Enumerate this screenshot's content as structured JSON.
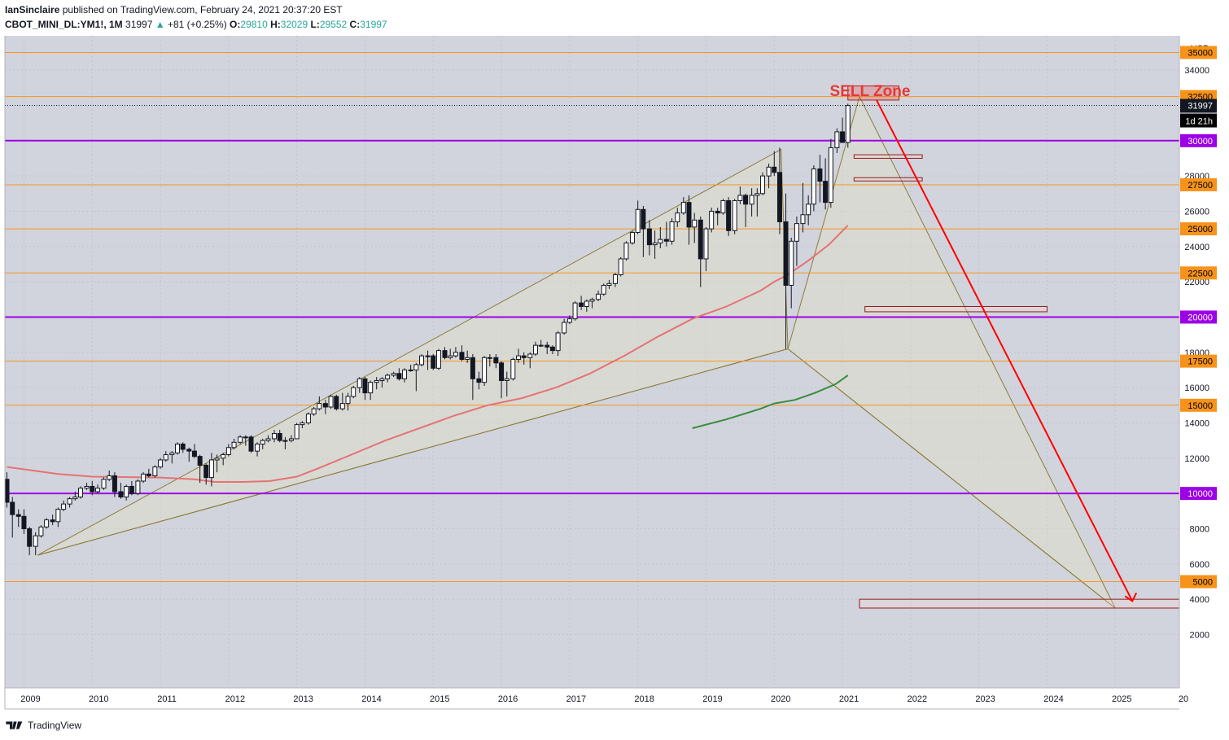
{
  "header": {
    "author": "IanSinclaire",
    "published_text": "published on TradingView.com, February 24, 2021 20:37:20 EST",
    "symbol": "CBOT_MINI_DL:YM1!, 1M",
    "last": "31997",
    "change": "+81 (+0.25%)",
    "o_label": "O:",
    "o_value": "29810",
    "h_label": "H:",
    "h_value": "32029",
    "l_label": "L:",
    "l_value": "29552",
    "c_label": "C:",
    "c_value": "31997"
  },
  "footer": {
    "brand": "TradingView"
  },
  "colors": {
    "background": "#d1d4dc",
    "orange_line": "#f7931a",
    "purple_line": "#9c00e6",
    "sell_zone": "#e53935",
    "forecast_arrow": "#ff0000",
    "ema_red": "#e57373",
    "ema_green": "#388e3c",
    "pattern_line": "#8b7d3a"
  },
  "chart_data": {
    "type": "candlestick",
    "currency_label": "USD",
    "y_range": [
      0,
      36600
    ],
    "x_range": [
      "2008-10",
      "2025-12"
    ],
    "price_axis_ticks": [
      2000,
      4000,
      6000,
      8000,
      12000,
      14000,
      16000,
      18000,
      22000,
      24000,
      26000,
      28000,
      34000
    ],
    "x_tick_labels": [
      "2009",
      "2010",
      "2011",
      "2012",
      "2013",
      "2014",
      "2015",
      "2016",
      "2017",
      "2018",
      "2019",
      "2020",
      "2021",
      "2022",
      "2023",
      "2024",
      "2025",
      "20"
    ],
    "horizontal_levels": [
      {
        "value": 35000,
        "color": "orange",
        "label": "35000"
      },
      {
        "value": 32500,
        "color": "orange",
        "label": "32500"
      },
      {
        "value": 30000,
        "color": "purple",
        "label": "30000"
      },
      {
        "value": 27500,
        "color": "orange",
        "label": "27500"
      },
      {
        "value": 25000,
        "color": "orange",
        "label": "25000"
      },
      {
        "value": 22500,
        "color": "orange",
        "label": "22500"
      },
      {
        "value": 20000,
        "color": "purple",
        "label": "20000"
      },
      {
        "value": 17500,
        "color": "orange",
        "label": "17500"
      },
      {
        "value": 15000,
        "color": "orange",
        "label": "15000"
      },
      {
        "value": 10000,
        "color": "purple",
        "label": "10000"
      },
      {
        "value": 5000,
        "color": "orange",
        "label": "5000"
      }
    ],
    "current_price_label": "31997",
    "countdown_label": "1d 21h",
    "annotation_text": "SELL Zone",
    "pattern_points": {
      "X": {
        "date": "2009.2",
        "price": 6500
      },
      "A": {
        "date": "2020.1",
        "price": 29500
      },
      "B": {
        "date": "2020.2",
        "price": 18200
      },
      "C": {
        "date": "2021.25",
        "price": 32500
      },
      "D": {
        "date": "2025.0",
        "price": 3500
      }
    },
    "forecast_arrow": {
      "from": {
        "date": "2021.5",
        "price": 32300
      },
      "to": {
        "date": "2025.25",
        "price": 3900
      }
    },
    "zones": [
      {
        "type": "sell",
        "x0": "2021.08",
        "x1": "2021.83",
        "top": 33100,
        "bottom": 32300
      },
      {
        "type": "target",
        "x0": "2021.25",
        "x1": "2025.99",
        "top": 4000,
        "bottom": 3500
      },
      {
        "type": "box",
        "x0": "2021.33",
        "x1": "2024.0",
        "top": 20600,
        "bottom": 20300
      },
      {
        "type": "box",
        "x0": "2021.17",
        "x1": "2022.17",
        "top": 29200,
        "bottom": 29000
      },
      {
        "type": "box",
        "x0": "2021.17",
        "x1": "2022.17",
        "top": 27900,
        "bottom": 27800
      }
    ],
    "candles": [
      [
        2008.75,
        10800,
        11200,
        9200,
        9500
      ],
      [
        2008.83,
        9500,
        9800,
        7500,
        8800
      ],
      [
        2008.92,
        8800,
        9100,
        8100,
        8700
      ],
      [
        2009.0,
        8700,
        9100,
        7700,
        8000
      ],
      [
        2009.08,
        8000,
        8100,
        6500,
        7000
      ],
      [
        2009.17,
        7000,
        7800,
        6500,
        7600
      ],
      [
        2009.25,
        7600,
        8200,
        7500,
        8100
      ],
      [
        2009.33,
        8100,
        8600,
        8000,
        8500
      ],
      [
        2009.42,
        8500,
        8800,
        8200,
        8400
      ],
      [
        2009.5,
        8400,
        9200,
        8100,
        9100
      ],
      [
        2009.58,
        9100,
        9600,
        9000,
        9400
      ],
      [
        2009.67,
        9400,
        9800,
        9200,
        9700
      ],
      [
        2009.75,
        9700,
        10100,
        9600,
        9800
      ],
      [
        2009.83,
        9800,
        10400,
        9700,
        10300
      ],
      [
        2009.92,
        10300,
        10600,
        10200,
        10400
      ],
      [
        2010.0,
        10400,
        10700,
        9900,
        10100
      ],
      [
        2010.08,
        10100,
        10500,
        10000,
        10300
      ],
      [
        2010.17,
        10300,
        10900,
        10200,
        10800
      ],
      [
        2010.25,
        10800,
        11300,
        10700,
        11000
      ],
      [
        2010.33,
        11000,
        11200,
        9800,
        10100
      ],
      [
        2010.42,
        10100,
        10600,
        9700,
        9800
      ],
      [
        2010.5,
        9800,
        10500,
        9600,
        10400
      ],
      [
        2010.58,
        10400,
        10700,
        9900,
        10000
      ],
      [
        2010.67,
        10000,
        10800,
        9900,
        10700
      ],
      [
        2010.75,
        10700,
        11200,
        10600,
        11100
      ],
      [
        2010.83,
        11100,
        11400,
        10900,
        11000
      ],
      [
        2010.92,
        11000,
        11600,
        10900,
        11500
      ],
      [
        2011.0,
        11500,
        12000,
        11400,
        11900
      ],
      [
        2011.08,
        11900,
        12400,
        11800,
        12200
      ],
      [
        2011.17,
        12200,
        12400,
        11700,
        12300
      ],
      [
        2011.25,
        12300,
        12900,
        12200,
        12800
      ],
      [
        2011.33,
        12800,
        12900,
        12300,
        12500
      ],
      [
        2011.42,
        12500,
        12600,
        11800,
        12400
      ],
      [
        2011.5,
        12400,
        12800,
        12000,
        12100
      ],
      [
        2011.58,
        12100,
        12200,
        10600,
        11600
      ],
      [
        2011.67,
        11600,
        11700,
        10500,
        10900
      ],
      [
        2011.75,
        10900,
        12300,
        10400,
        11900
      ],
      [
        2011.83,
        11900,
        12200,
        11200,
        12000
      ],
      [
        2011.92,
        12000,
        12300,
        11600,
        12200
      ],
      [
        2012.0,
        12200,
        12800,
        12100,
        12600
      ],
      [
        2012.08,
        12600,
        13100,
        12500,
        12900
      ],
      [
        2012.17,
        12900,
        13300,
        12800,
        13200
      ],
      [
        2012.25,
        13200,
        13300,
        12700,
        13200
      ],
      [
        2012.33,
        13200,
        13300,
        12300,
        12400
      ],
      [
        2012.42,
        12400,
        12900,
        12100,
        12800
      ],
      [
        2012.5,
        12800,
        13100,
        12500,
        13000
      ],
      [
        2012.58,
        13000,
        13300,
        12900,
        13100
      ],
      [
        2012.67,
        13100,
        13600,
        12900,
        13400
      ],
      [
        2012.75,
        13400,
        13600,
        12900,
        13000
      ],
      [
        2012.83,
        13000,
        13200,
        12500,
        13000
      ],
      [
        2012.92,
        13000,
        13300,
        12900,
        13100
      ],
      [
        2013.0,
        13100,
        14000,
        13100,
        13900
      ],
      [
        2013.08,
        13900,
        14100,
        13700,
        14000
      ],
      [
        2013.17,
        14000,
        14600,
        13900,
        14500
      ],
      [
        2013.25,
        14500,
        14900,
        14400,
        14800
      ],
      [
        2013.33,
        14800,
        15500,
        14700,
        15100
      ],
      [
        2013.42,
        15100,
        15300,
        14500,
        14900
      ],
      [
        2013.5,
        14900,
        15600,
        14800,
        15500
      ],
      [
        2013.58,
        15500,
        15600,
        14700,
        14800
      ],
      [
        2013.67,
        14800,
        15700,
        14700,
        15100
      ],
      [
        2013.75,
        15100,
        15700,
        14700,
        15500
      ],
      [
        2013.83,
        15500,
        16100,
        15400,
        16000
      ],
      [
        2013.92,
        16000,
        16600,
        15700,
        16500
      ],
      [
        2014.0,
        16500,
        16600,
        15300,
        15700
      ],
      [
        2014.08,
        15700,
        16400,
        15300,
        16300
      ],
      [
        2014.17,
        16300,
        16600,
        15900,
        16400
      ],
      [
        2014.25,
        16400,
        16600,
        16000,
        16500
      ],
      [
        2014.33,
        16500,
        16800,
        16300,
        16700
      ],
      [
        2014.42,
        16700,
        16900,
        16600,
        16800
      ],
      [
        2014.5,
        16800,
        17100,
        16400,
        16500
      ],
      [
        2014.58,
        16500,
        17100,
        16300,
        17000
      ],
      [
        2014.67,
        17000,
        17300,
        16900,
        17000
      ],
      [
        2014.75,
        17000,
        17400,
        15800,
        17300
      ],
      [
        2014.83,
        17300,
        17900,
        17200,
        17800
      ],
      [
        2014.92,
        17800,
        18100,
        17000,
        17800
      ],
      [
        2015.0,
        17800,
        17900,
        17000,
        17100
      ],
      [
        2015.08,
        17100,
        18200,
        17000,
        18100
      ],
      [
        2015.17,
        18100,
        18300,
        17600,
        17700
      ],
      [
        2015.25,
        17700,
        18200,
        17600,
        17800
      ],
      [
        2015.33,
        17800,
        18300,
        17700,
        18000
      ],
      [
        2015.42,
        18000,
        18400,
        17500,
        17600
      ],
      [
        2015.5,
        17600,
        18100,
        17400,
        17700
      ],
      [
        2015.58,
        17700,
        17900,
        15300,
        16500
      ],
      [
        2015.67,
        16500,
        16900,
        15900,
        16300
      ],
      [
        2015.75,
        16300,
        17800,
        16100,
        17700
      ],
      [
        2015.83,
        17700,
        17900,
        17200,
        17700
      ],
      [
        2015.92,
        17700,
        17900,
        17100,
        17400
      ],
      [
        2016.0,
        17400,
        17500,
        15400,
        16400
      ],
      [
        2016.08,
        16400,
        16900,
        15500,
        16500
      ],
      [
        2016.17,
        16500,
        17700,
        16400,
        17600
      ],
      [
        2016.25,
        17600,
        18200,
        17400,
        17800
      ],
      [
        2016.33,
        17800,
        18000,
        17300,
        17700
      ],
      [
        2016.42,
        17700,
        18000,
        17100,
        17900
      ],
      [
        2016.5,
        17900,
        18600,
        17800,
        18400
      ],
      [
        2016.58,
        18400,
        18700,
        18300,
        18400
      ],
      [
        2016.67,
        18400,
        18600,
        17900,
        18300
      ],
      [
        2016.75,
        18300,
        18400,
        17900,
        18100
      ],
      [
        2016.83,
        18100,
        19200,
        17800,
        19100
      ],
      [
        2016.92,
        19100,
        19900,
        19000,
        19700
      ],
      [
        2017.0,
        19700,
        20100,
        19600,
        19900
      ],
      [
        2017.08,
        19900,
        20900,
        19800,
        20800
      ],
      [
        2017.17,
        20800,
        21200,
        20400,
        20600
      ],
      [
        2017.25,
        20600,
        21000,
        20300,
        20900
      ],
      [
        2017.33,
        20900,
        21100,
        20500,
        21000
      ],
      [
        2017.42,
        21000,
        21500,
        20900,
        21300
      ],
      [
        2017.5,
        21300,
        21900,
        21200,
        21800
      ],
      [
        2017.58,
        21800,
        22100,
        21600,
        21900
      ],
      [
        2017.67,
        21900,
        22500,
        21700,
        22400
      ],
      [
        2017.75,
        22400,
        23400,
        22300,
        23300
      ],
      [
        2017.83,
        23300,
        24300,
        23200,
        24200
      ],
      [
        2017.92,
        24200,
        24900,
        24100,
        24800
      ],
      [
        2018.0,
        24800,
        26600,
        24700,
        26100
      ],
      [
        2018.08,
        26100,
        26300,
        23400,
        25000
      ],
      [
        2018.17,
        25000,
        25500,
        23500,
        24100
      ],
      [
        2018.25,
        24100,
        24900,
        23300,
        24200
      ],
      [
        2018.33,
        24200,
        25100,
        23900,
        24400
      ],
      [
        2018.42,
        24400,
        25400,
        24000,
        24300
      ],
      [
        2018.5,
        24300,
        25600,
        24100,
        25400
      ],
      [
        2018.58,
        25400,
        26200,
        25100,
        25900
      ],
      [
        2018.67,
        25900,
        26800,
        25800,
        26500
      ],
      [
        2018.75,
        26500,
        26900,
        24100,
        25100
      ],
      [
        2018.83,
        25100,
        25900,
        24200,
        25500
      ],
      [
        2018.92,
        25500,
        25700,
        21700,
        23300
      ],
      [
        2019.0,
        23300,
        25100,
        22600,
        25000
      ],
      [
        2019.08,
        25000,
        26200,
        24800,
        26000
      ],
      [
        2019.17,
        26000,
        26200,
        25200,
        25900
      ],
      [
        2019.25,
        25900,
        26700,
        25800,
        26600
      ],
      [
        2019.33,
        26600,
        26800,
        24600,
        24900
      ],
      [
        2019.42,
        24900,
        26700,
        24700,
        26600
      ],
      [
        2019.5,
        26600,
        27400,
        26400,
        26900
      ],
      [
        2019.58,
        26900,
        27000,
        25100,
        26400
      ],
      [
        2019.67,
        26400,
        27300,
        25700,
        26900
      ],
      [
        2019.75,
        26900,
        27300,
        25700,
        27000
      ],
      [
        2019.83,
        27000,
        28200,
        26900,
        28000
      ],
      [
        2019.92,
        28000,
        28700,
        27300,
        28500
      ],
      [
        2020.0,
        28500,
        29400,
        28000,
        28200
      ],
      [
        2020.08,
        28200,
        29600,
        24700,
        25400
      ],
      [
        2020.17,
        25400,
        27000,
        18200,
        21800
      ],
      [
        2020.25,
        21800,
        24500,
        20500,
        24300
      ],
      [
        2020.33,
        24300,
        25700,
        22900,
        25300
      ],
      [
        2020.42,
        25300,
        27600,
        24800,
        25800
      ],
      [
        2020.5,
        25800,
        26900,
        25200,
        26400
      ],
      [
        2020.58,
        26400,
        28600,
        26000,
        28400
      ],
      [
        2020.67,
        28400,
        29200,
        26500,
        27700
      ],
      [
        2020.75,
        27700,
        29000,
        26100,
        26500
      ],
      [
        2020.83,
        26500,
        30100,
        26200,
        29600
      ],
      [
        2020.92,
        29600,
        30700,
        29300,
        30500
      ],
      [
        2021.0,
        30500,
        31300,
        29900,
        29900
      ],
      [
        2021.08,
        29900,
        32100,
        29600,
        31990
      ]
    ],
    "ema_red": [
      [
        2008.75,
        11500
      ],
      [
        2009.5,
        11100
      ],
      [
        2010.0,
        10950
      ],
      [
        2011.0,
        10900
      ],
      [
        2011.5,
        10800
      ],
      [
        2011.8,
        10650
      ],
      [
        2012.2,
        10650
      ],
      [
        2012.6,
        10700
      ],
      [
        2013.0,
        10950
      ],
      [
        2013.3,
        11400
      ],
      [
        2013.8,
        12200
      ],
      [
        2014.3,
        13000
      ],
      [
        2014.8,
        13700
      ],
      [
        2015.3,
        14400
      ],
      [
        2015.8,
        15000
      ],
      [
        2016.3,
        15400
      ],
      [
        2016.8,
        16000
      ],
      [
        2017.3,
        16800
      ],
      [
        2017.8,
        17800
      ],
      [
        2018.3,
        18900
      ],
      [
        2018.8,
        19900
      ],
      [
        2019.3,
        20600
      ],
      [
        2019.8,
        21500
      ],
      [
        2020.0,
        22000
      ],
      [
        2020.2,
        22400
      ],
      [
        2020.5,
        23200
      ],
      [
        2020.8,
        24100
      ],
      [
        2021.08,
        25200
      ]
    ],
    "ema_green": [
      [
        2018.8,
        13700
      ],
      [
        2019.3,
        14200
      ],
      [
        2019.8,
        14800
      ],
      [
        2020.0,
        15100
      ],
      [
        2020.3,
        15300
      ],
      [
        2020.6,
        15700
      ],
      [
        2020.9,
        16200
      ],
      [
        2021.08,
        16700
      ]
    ]
  }
}
